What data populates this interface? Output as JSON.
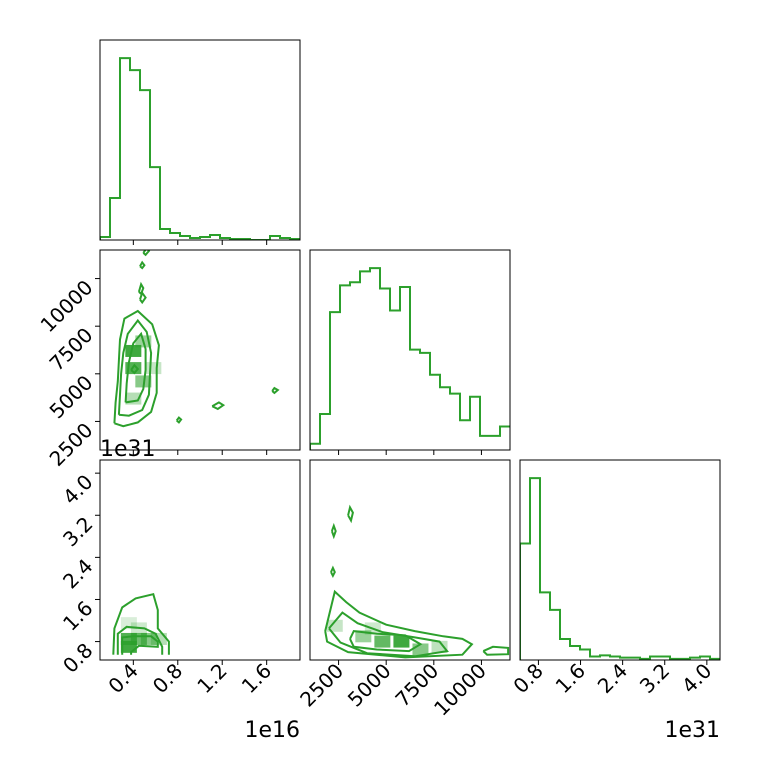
{
  "chart_data": {
    "type": "corner",
    "color": "#2ca02c",
    "parameters": [
      {
        "label": "",
        "offset_text": "1e16",
        "range": [
          0.1,
          1.9
        ],
        "ticks": [
          0.4,
          0.8,
          1.2,
          1.6
        ],
        "tick_labels": [
          "0.4",
          "0.8",
          "1.2",
          "1.6"
        ]
      },
      {
        "label": "",
        "offset_text": "",
        "range": [
          1000,
          11500
        ],
        "ticks": [
          2500,
          5000,
          7500,
          10000
        ],
        "tick_labels": [
          "2500",
          "5000",
          "7500",
          "10000"
        ]
      },
      {
        "label": "",
        "offset_text": "1e31",
        "range": [
          0.45,
          4.25
        ],
        "ticks": [
          0.8,
          1.6,
          2.4,
          3.2,
          4.0
        ],
        "tick_labels": [
          "0.8",
          "1.6",
          "2.4",
          "3.2",
          "4.0"
        ]
      }
    ],
    "histograms": [
      {
        "param": 0,
        "bin_edges": [
          0.1,
          0.19,
          0.28,
          0.37,
          0.46,
          0.55,
          0.64,
          0.73,
          0.82,
          0.91,
          1.0,
          1.09,
          1.18,
          1.27,
          1.36,
          1.45,
          1.54,
          1.63,
          1.72,
          1.81,
          1.9
        ],
        "counts": [
          3,
          42,
          182,
          170,
          150,
          73,
          11,
          7,
          4,
          2,
          3,
          5,
          2,
          1,
          1,
          0,
          0,
          4,
          2,
          1
        ]
      },
      {
        "param": 1,
        "bin_edges": [
          1000,
          1525,
          2050,
          2575,
          3100,
          3625,
          4150,
          4675,
          5200,
          5725,
          6250,
          6775,
          7300,
          7825,
          8350,
          8875,
          9400,
          9925,
          10450,
          10975,
          11500
        ],
        "counts": [
          4,
          23,
          88,
          105,
          107,
          114,
          116,
          103,
          89,
          104,
          64,
          62,
          48,
          40,
          36,
          19,
          34,
          9,
          9,
          15
        ]
      },
      {
        "param": 2,
        "bin_edges": [
          0.45,
          0.64,
          0.83,
          1.02,
          1.21,
          1.4,
          1.59,
          1.78,
          1.97,
          2.16,
          2.35,
          2.54,
          2.73,
          2.92,
          3.11,
          3.3,
          3.49,
          3.68,
          3.87,
          4.06,
          4.25
        ],
        "counts": [
          100,
          156,
          58,
          43,
          18,
          12,
          9,
          3,
          4,
          3,
          2,
          2,
          1,
          3,
          3,
          1,
          1,
          2,
          3,
          1
        ]
      }
    ],
    "pairs": [
      {
        "x_param": 0,
        "y_param": 1,
        "density_cells": [
          {
            "x": 0.4,
            "y": 6200,
            "level": 0.95
          },
          {
            "x": 0.4,
            "y": 5300,
            "level": 0.85
          },
          {
            "x": 0.49,
            "y": 4600,
            "level": 0.55
          },
          {
            "x": 0.49,
            "y": 6700,
            "level": 0.45
          },
          {
            "x": 0.4,
            "y": 3700,
            "level": 0.3
          },
          {
            "x": 0.58,
            "y": 5300,
            "level": 0.2
          }
        ],
        "contours": [
          {
            "level": "outer",
            "points": [
              [
                0.23,
                2400
              ],
              [
                0.24,
                3500
              ],
              [
                0.26,
                4600
              ],
              [
                0.27,
                5700
              ],
              [
                0.28,
                6800
              ],
              [
                0.32,
                7900
              ],
              [
                0.44,
                8300
              ],
              [
                0.57,
                7600
              ],
              [
                0.63,
                6500
              ],
              [
                0.61,
                5300
              ],
              [
                0.61,
                4000
              ],
              [
                0.56,
                3000
              ],
              [
                0.44,
                2450
              ],
              [
                0.31,
                2250
              ],
              [
                0.23,
                2400
              ]
            ]
          },
          {
            "level": "middle",
            "points": [
              [
                0.27,
                2850
              ],
              [
                0.28,
                3900
              ],
              [
                0.29,
                5000
              ],
              [
                0.31,
                6100
              ],
              [
                0.35,
                7100
              ],
              [
                0.44,
                7800
              ],
              [
                0.52,
                7200
              ],
              [
                0.56,
                6100
              ],
              [
                0.55,
                5000
              ],
              [
                0.54,
                3900
              ],
              [
                0.48,
                3100
              ],
              [
                0.36,
                2800
              ],
              [
                0.27,
                2850
              ]
            ]
          },
          {
            "level": "inner",
            "points": [
              [
                0.33,
                3500
              ],
              [
                0.34,
                4500
              ],
              [
                0.36,
                5600
              ],
              [
                0.4,
                6600
              ],
              [
                0.47,
                7100
              ],
              [
                0.51,
                6300
              ],
              [
                0.51,
                5200
              ],
              [
                0.49,
                4200
              ],
              [
                0.44,
                3600
              ],
              [
                0.33,
                3500
              ]
            ]
          },
          {
            "level": "island",
            "points": [
              [
                0.46,
                8900
              ],
              [
                0.48,
                9250
              ],
              [
                0.51,
                9000
              ],
              [
                0.48,
                8750
              ],
              [
                0.46,
                8900
              ]
            ]
          },
          {
            "level": "island",
            "points": [
              [
                0.45,
                9300
              ],
              [
                0.47,
                9700
              ],
              [
                0.49,
                9500
              ],
              [
                0.47,
                9200
              ],
              [
                0.45,
                9300
              ]
            ]
          },
          {
            "level": "island",
            "points": [
              [
                0.49,
                11350
              ],
              [
                0.52,
                11600
              ],
              [
                0.54,
                11450
              ],
              [
                0.51,
                11250
              ],
              [
                0.49,
                11350
              ]
            ]
          },
          {
            "level": "island",
            "points": [
              [
                0.46,
                10650
              ],
              [
                0.48,
                10850
              ],
              [
                0.5,
                10700
              ],
              [
                0.48,
                10550
              ],
              [
                0.46,
                10650
              ]
            ]
          },
          {
            "level": "island",
            "points": [
              [
                0.38,
                5200
              ],
              [
                0.41,
                5450
              ],
              [
                0.44,
                5250
              ],
              [
                0.41,
                5050
              ],
              [
                0.38,
                5200
              ]
            ]
          },
          {
            "level": "island",
            "points": [
              [
                1.11,
                3300
              ],
              [
                1.17,
                3500
              ],
              [
                1.21,
                3350
              ],
              [
                1.16,
                3150
              ],
              [
                1.11,
                3300
              ]
            ]
          },
          {
            "level": "island",
            "points": [
              [
                0.79,
                2550
              ],
              [
                0.81,
                2700
              ],
              [
                0.83,
                2600
              ],
              [
                0.81,
                2450
              ],
              [
                0.79,
                2550
              ]
            ]
          },
          {
            "level": "island",
            "points": [
              [
                1.65,
                4100
              ],
              [
                1.67,
                4250
              ],
              [
                1.7,
                4150
              ],
              [
                1.67,
                4000
              ],
              [
                1.65,
                4100
              ]
            ]
          }
        ]
      },
      {
        "x_param": 0,
        "y_param": 2,
        "density_cells": [
          {
            "x": 0.36,
            "y": 0.7,
            "level": 0.95
          },
          {
            "x": 0.36,
            "y": 0.85,
            "level": 0.85
          },
          {
            "x": 0.45,
            "y": 0.85,
            "level": 0.7
          },
          {
            "x": 0.54,
            "y": 0.85,
            "level": 0.55
          },
          {
            "x": 0.63,
            "y": 0.85,
            "level": 0.3
          },
          {
            "x": 0.45,
            "y": 1.05,
            "level": 0.15
          },
          {
            "x": 0.36,
            "y": 1.15,
            "level": 0.1
          }
        ],
        "contours": [
          {
            "level": "outer",
            "points": [
              [
                0.22,
                0.55
              ],
              [
                0.23,
                1.05
              ],
              [
                0.3,
                1.45
              ],
              [
                0.42,
                1.62
              ],
              [
                0.58,
                1.7
              ],
              [
                0.62,
                1.4
              ],
              [
                0.62,
                1.05
              ],
              [
                0.72,
                0.8
              ],
              [
                0.72,
                0.55
              ]
            ]
          },
          {
            "level": "middle",
            "points": [
              [
                0.26,
                0.55
              ],
              [
                0.26,
                0.95
              ],
              [
                0.34,
                1.08
              ],
              [
                0.5,
                1.05
              ],
              [
                0.6,
                0.95
              ],
              [
                0.66,
                0.7
              ],
              [
                0.66,
                0.55
              ]
            ]
          },
          {
            "level": "inner",
            "points": [
              [
                0.3,
                0.55
              ],
              [
                0.3,
                0.88
              ],
              [
                0.4,
                0.9
              ],
              [
                0.56,
                0.9
              ],
              [
                0.62,
                0.8
              ],
              [
                0.62,
                0.7
              ],
              [
                0.45,
                0.72
              ],
              [
                0.38,
                0.6
              ],
              [
                0.38,
                0.55
              ]
            ]
          }
        ]
      },
      {
        "x_param": 1,
        "y_param": 2,
        "density_cells": [
          {
            "x": 5800,
            "y": 0.8,
            "level": 0.95
          },
          {
            "x": 4800,
            "y": 0.8,
            "level": 0.75
          },
          {
            "x": 3800,
            "y": 0.9,
            "level": 0.45
          },
          {
            "x": 6800,
            "y": 0.65,
            "level": 0.55
          },
          {
            "x": 2300,
            "y": 1.1,
            "level": 0.2
          },
          {
            "x": 7800,
            "y": 0.7,
            "level": 0.25
          },
          {
            "x": 4300,
            "y": 1.05,
            "level": 0.15
          }
        ],
        "contours": [
          {
            "level": "outer",
            "points": [
              [
                1800,
                1.0
              ],
              [
                2300,
                1.75
              ],
              [
                2900,
                1.55
              ],
              [
                3600,
                1.35
              ],
              [
                5000,
                1.12
              ],
              [
                6500,
                1.0
              ],
              [
                8000,
                0.9
              ],
              [
                9000,
                0.85
              ],
              [
                9500,
                0.75
              ],
              [
                9000,
                0.55
              ],
              [
                6000,
                0.5
              ],
              [
                3000,
                0.6
              ],
              [
                1900,
                0.8
              ],
              [
                1800,
                1.0
              ]
            ]
          },
          {
            "level": "middle",
            "points": [
              [
                2000,
                1.05
              ],
              [
                2700,
                1.35
              ],
              [
                3500,
                1.15
              ],
              [
                4800,
                0.98
              ],
              [
                6500,
                0.88
              ],
              [
                7800,
                0.8
              ],
              [
                8200,
                0.62
              ],
              [
                6500,
                0.52
              ],
              [
                4000,
                0.58
              ],
              [
                2600,
                0.78
              ],
              [
                2000,
                1.05
              ]
            ]
          },
          {
            "level": "inner",
            "points": [
              [
                3100,
                0.85
              ],
              [
                3300,
                1.0
              ],
              [
                4500,
                0.95
              ],
              [
                6000,
                0.92
              ],
              [
                6800,
                0.75
              ],
              [
                6200,
                0.62
              ],
              [
                4500,
                0.65
              ],
              [
                3300,
                0.7
              ],
              [
                3100,
                0.85
              ]
            ]
          },
          {
            "level": "island",
            "points": [
              [
                3000,
                3.2
              ],
              [
                3100,
                3.35
              ],
              [
                3250,
                3.25
              ],
              [
                3150,
                3.1
              ],
              [
                3000,
                3.2
              ]
            ]
          },
          {
            "level": "island",
            "points": [
              [
                2150,
                2.9
              ],
              [
                2250,
                3.0
              ],
              [
                2350,
                2.9
              ],
              [
                2250,
                2.8
              ],
              [
                2150,
                2.9
              ]
            ]
          },
          {
            "level": "island",
            "points": [
              [
                2100,
                2.12
              ],
              [
                2200,
                2.2
              ],
              [
                2300,
                2.12
              ],
              [
                2200,
                2.05
              ],
              [
                2100,
                2.12
              ]
            ]
          },
          {
            "level": "island",
            "points": [
              [
                10100,
                0.62
              ],
              [
                10600,
                0.7
              ],
              [
                11400,
                0.68
              ],
              [
                11400,
                0.56
              ],
              [
                10300,
                0.55
              ],
              [
                10100,
                0.62
              ]
            ]
          }
        ]
      }
    ]
  }
}
